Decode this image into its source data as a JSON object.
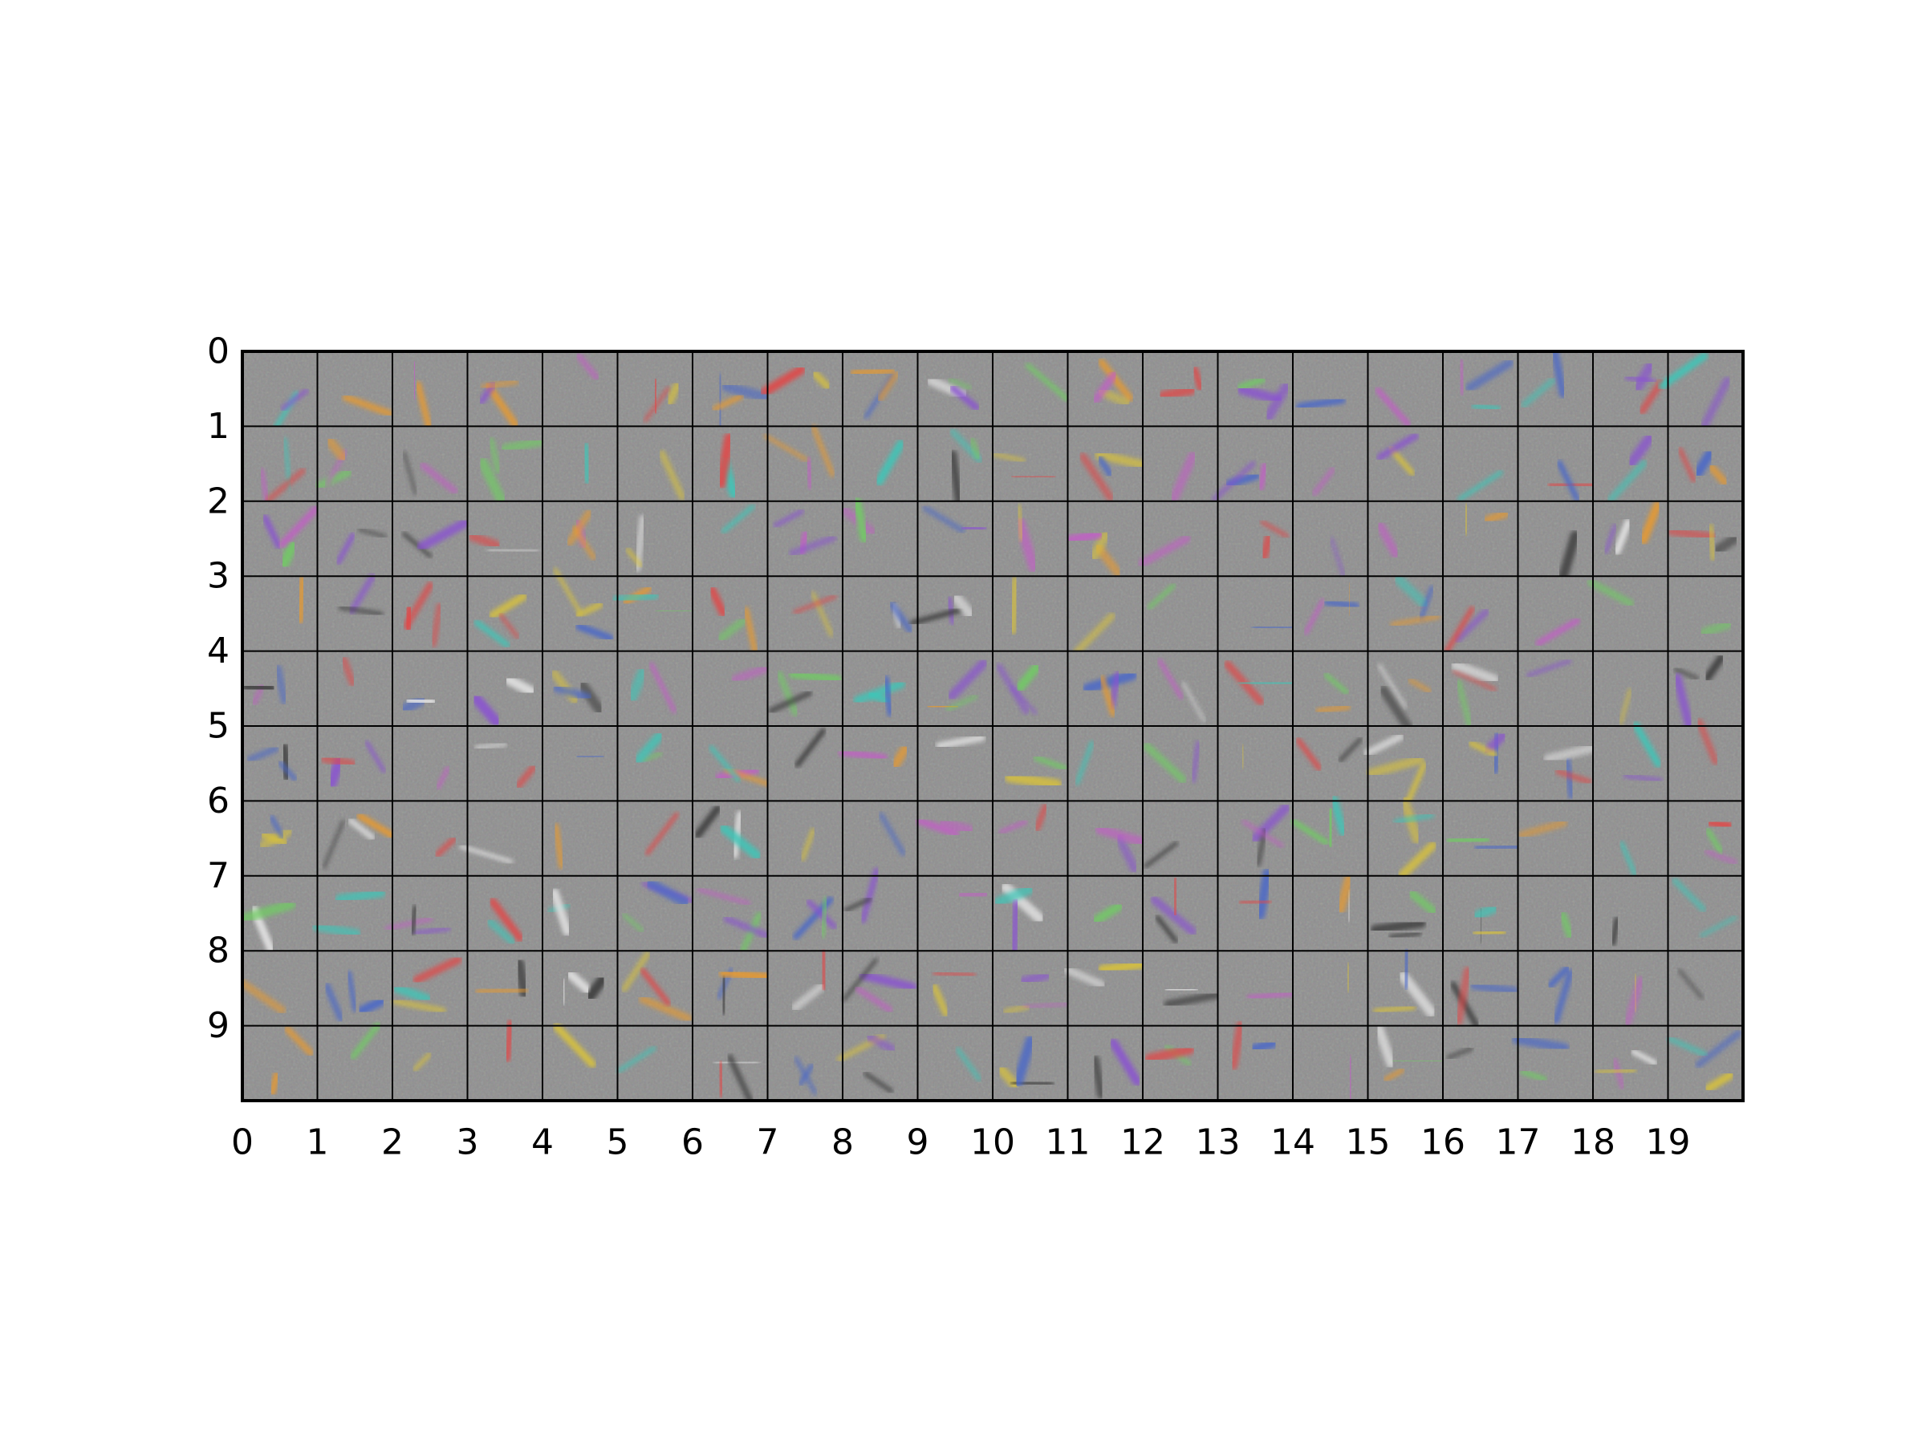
{
  "chart_data": {
    "type": "heatmap",
    "description_kind": "image grid of learned filter visualizations",
    "grid": {
      "columns": 20,
      "rows": 10
    },
    "x_ticks": [
      "0",
      "1",
      "2",
      "3",
      "4",
      "5",
      "6",
      "7",
      "8",
      "9",
      "10",
      "11",
      "12",
      "13",
      "14",
      "15",
      "16",
      "17",
      "18",
      "19"
    ],
    "y_ticks": [
      "0",
      "1",
      "2",
      "3",
      "4",
      "5",
      "6",
      "7",
      "8",
      "9"
    ],
    "xlim": [
      0,
      20
    ],
    "ylim": [
      10,
      0
    ],
    "grid_lines": true,
    "cell_background": "#8f8f8f",
    "grid_line_color": "#000000",
    "accent_colors": {
      "green": "#6fce62",
      "magenta": "#c25fc6",
      "orange": "#e89a2f",
      "cyan": "#3ec6b8",
      "red": "#e04a4a",
      "yellow": "#d9c23a",
      "blue": "#4a67c9",
      "purple": "#8a52d1",
      "white": "#e6e6e6",
      "dark": "#3a3a3a"
    }
  }
}
